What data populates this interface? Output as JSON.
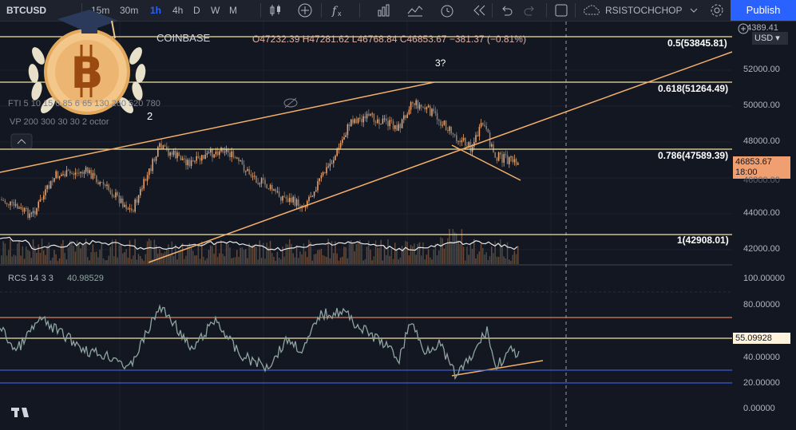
{
  "toolbar": {
    "symbol": "BTCUSD",
    "intervals": [
      "15m",
      "30m",
      "1h",
      "4h",
      "D",
      "W",
      "M"
    ],
    "active_interval": "1h",
    "indicator_name": "RSISTOCHCHOP",
    "publish": "Publish"
  },
  "legend": {
    "exchange": "COINBASE",
    "ohlc": "O47232.39 H47281.62 L46768.84 C46853.67 −381.37 (−0.81%)",
    "ema_line": "FTI 5 10 15 0.85 6 65 130 260 520 780",
    "vp_line": "VP 200 300 30 30 2 octor",
    "count_2": "2",
    "wave_3": "3?"
  },
  "fib_levels": [
    {
      "label": "0.5(53845.81)"
    },
    {
      "label": "0.618(51264.49)"
    },
    {
      "label": "0.786(47589.39)"
    },
    {
      "label": "1(42908.01)"
    }
  ],
  "price_axis": {
    "currency": "USD",
    "top_value": "54389.41",
    "ticks": [
      "52000.00",
      "50000.00",
      "48000.00",
      "44000.00",
      "42000.00"
    ],
    "last_price": "46853.67",
    "countdown": "18:00",
    "dim_tick": "46000.00"
  },
  "rcs": {
    "label": "RCS 14 3 3",
    "value": "40.98529",
    "ticks": [
      "100.00000",
      "80.00000",
      "40.00000",
      "20.00000",
      "0.00000"
    ],
    "badge": "55.09928"
  },
  "colors": {
    "background": "#131722",
    "accent": "#2962ff",
    "fib": "#f0e2a0",
    "trendline": "#f5b06a",
    "badge": "#f0a070",
    "rcs_line": "#8fa5a0"
  },
  "logo": "tradingview-logo"
}
